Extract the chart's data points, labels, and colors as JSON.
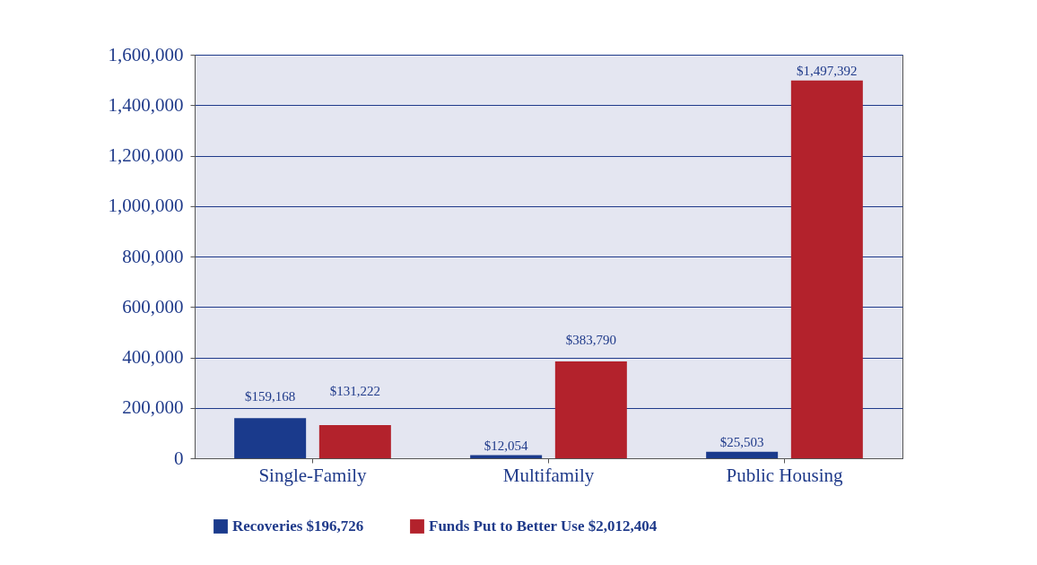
{
  "chart_data": {
    "type": "bar",
    "categories": [
      "Single-Family",
      "Multifamily",
      "Public Housing"
    ],
    "series": [
      {
        "name": "Recoveries $196,726",
        "color": "#1a3a8c",
        "values": [
          159168,
          12054,
          25503
        ],
        "value_labels": [
          "$159,168",
          "$12,054",
          "$25,503"
        ]
      },
      {
        "name": "Funds Put to Better Use $2,012,404",
        "color": "#b3222c",
        "values": [
          131222,
          383790,
          1497392
        ],
        "value_labels": [
          "$131,222",
          "$383,790",
          "$1,497,392"
        ]
      }
    ],
    "ylim": [
      0,
      1600000
    ],
    "yticks": [
      {
        "value": 0,
        "label": "0"
      },
      {
        "value": 200000,
        "label": "200,000"
      },
      {
        "value": 400000,
        "label": "400,000"
      },
      {
        "value": 600000,
        "label": "600,000"
      },
      {
        "value": 800000,
        "label": "800,000"
      },
      {
        "value": 1000000,
        "label": "1,000,000"
      },
      {
        "value": 1200000,
        "label": "1,200,000"
      },
      {
        "value": 1400000,
        "label": "1,400,000"
      },
      {
        "value": 1600000,
        "label": "1,600,000"
      }
    ],
    "grid": "y",
    "legend": "bottom"
  }
}
